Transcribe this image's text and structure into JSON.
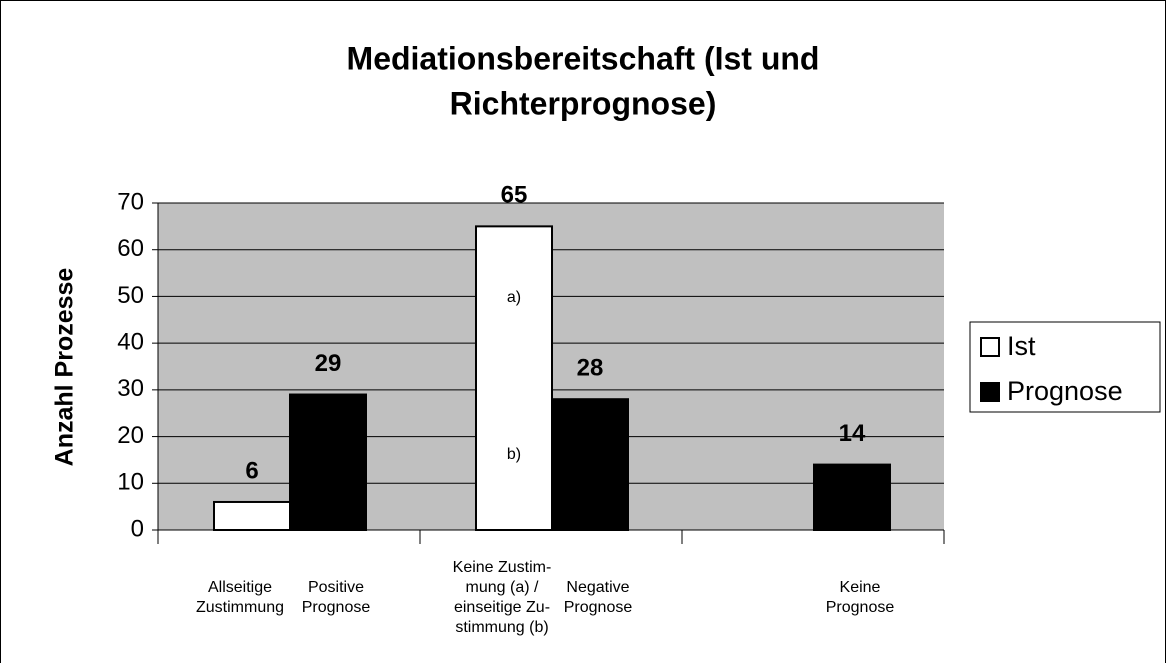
{
  "chart_data": {
    "type": "bar",
    "title": [
      "Mediationsbereitschaft (Ist und",
      "Richterprognose)"
    ],
    "y_label": "Anzahl Prozesse",
    "categories": [
      null,
      null,
      null
    ],
    "series": [
      {
        "name": "Ist",
        "color": "#ffffff",
        "values": [
          6,
          65,
          null
        ],
        "labels": [
          [
            "Allseitige",
            "Zustimmung"
          ],
          [
            "Keine Zustim-",
            "mung (a) /",
            "einseitige Zu-",
            "stimmung (b)"
          ],
          null
        ]
      },
      {
        "name": "Prognose",
        "color": "#000000",
        "values": [
          29,
          28,
          14
        ],
        "labels": [
          [
            "Positive",
            "Prognose"
          ],
          [
            "Negative",
            "Prognose"
          ],
          [
            "Keine",
            "Prognose"
          ]
        ]
      }
    ],
    "annotations": [
      {
        "text": "a)",
        "series": 0,
        "index": 1
      },
      {
        "text": "b)",
        "series": 0,
        "index": 1
      }
    ],
    "ylim": [
      0,
      70
    ],
    "yticks": [
      0,
      10,
      20,
      30,
      40,
      50,
      60,
      70
    ],
    "grid": true,
    "plot_background": "#c0c0c0",
    "legend": "right"
  }
}
